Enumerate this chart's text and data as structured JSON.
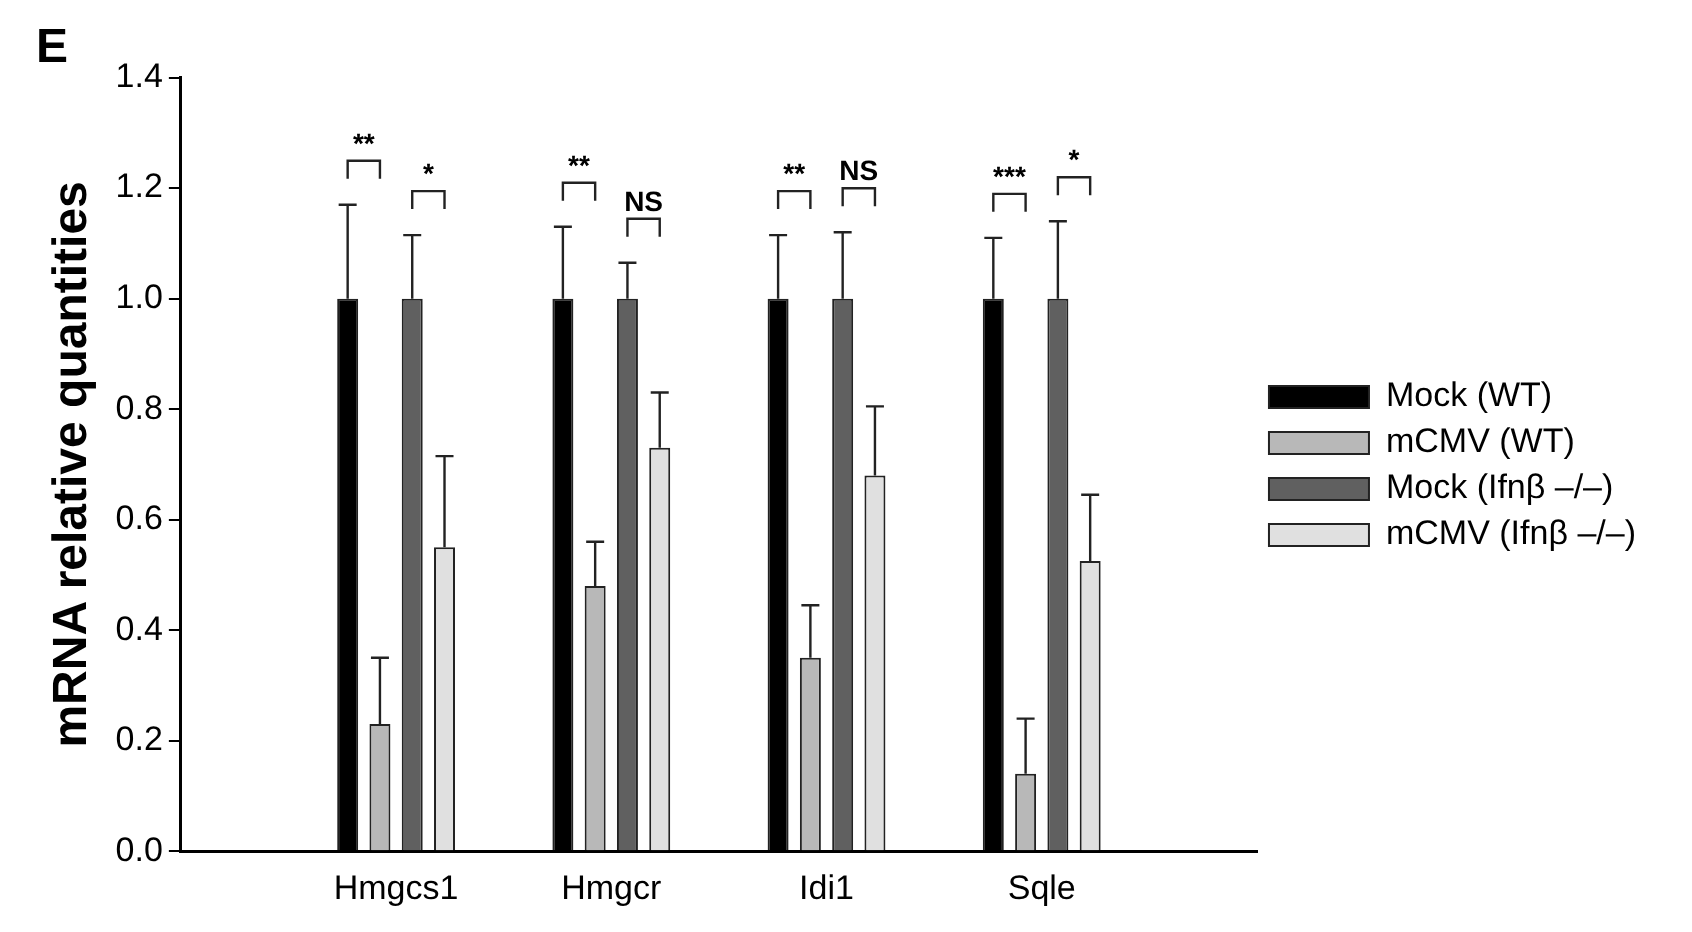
{
  "chart_data": {
    "type": "bar",
    "title": "E",
    "ylabel": "mRNA relative quantities",
    "categories": [
      "Hmgcs1",
      "Hmgcr",
      "Idi1",
      "Sqle"
    ],
    "series": [
      {
        "name": "Mock (WT)",
        "color": "#000000",
        "values": [
          1.0,
          1.0,
          1.0,
          1.0
        ],
        "errors": [
          [
            1.0,
            1.17
          ],
          [
            1.0,
            1.13
          ],
          [
            1.0,
            1.115
          ],
          [
            1.0,
            1.11
          ]
        ]
      },
      {
        "name": "mCMV (WT)",
        "color": "#b8b8b8",
        "values": [
          0.23,
          0.48,
          0.35,
          0.14
        ],
        "errors": [
          [
            0.23,
            0.35
          ],
          [
            0.48,
            0.56
          ],
          [
            0.35,
            0.445
          ],
          [
            0.14,
            0.24
          ]
        ]
      },
      {
        "name": "Mock (Ifnβ –/–)",
        "color": "#606060",
        "values": [
          1.0,
          1.0,
          1.0,
          1.0
        ],
        "errors": [
          [
            1.0,
            1.115
          ],
          [
            1.0,
            1.065
          ],
          [
            1.0,
            1.12
          ],
          [
            1.0,
            1.14
          ]
        ]
      },
      {
        "name": "mCMV (Ifnβ –/–)",
        "color": "#e0e0e0",
        "values": [
          0.55,
          0.73,
          0.68,
          0.525
        ],
        "errors": [
          [
            0.55,
            0.715
          ],
          [
            0.73,
            0.83
          ],
          [
            0.68,
            0.805
          ],
          [
            0.525,
            0.645
          ]
        ]
      }
    ],
    "annotations": [
      "**",
      "*",
      "**",
      "NS",
      "**",
      "NS",
      "***",
      "*"
    ],
    "ylim": [
      0,
      1.4
    ],
    "yticks": [
      {
        "value": 0,
        "label": "0.0"
      },
      0.2,
      0.4,
      0.6,
      0.8,
      {
        "value": 1,
        "label": "1.0"
      },
      1.2,
      1.4
    ],
    "grid": false,
    "legend": "right"
  }
}
